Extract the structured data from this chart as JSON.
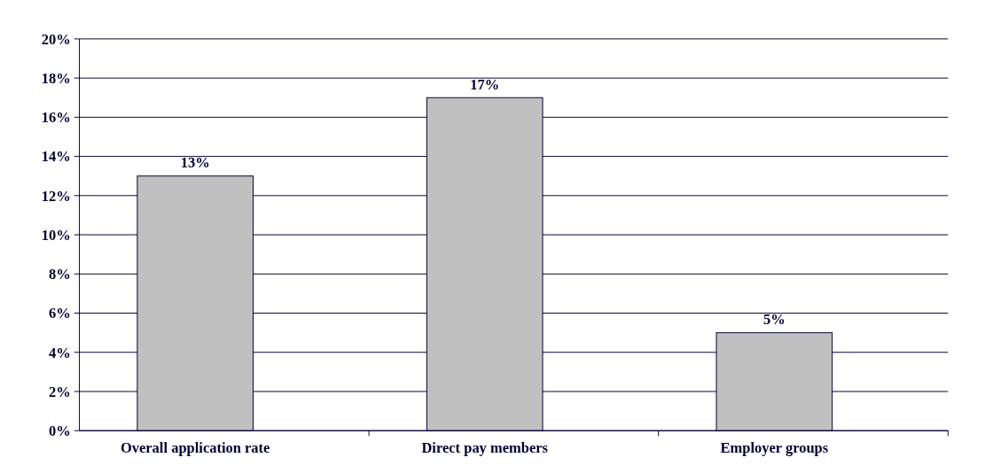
{
  "chart_data": {
    "type": "bar",
    "categories": [
      "Overall application rate",
      "Direct pay members",
      "Employer groups"
    ],
    "values": [
      13,
      17,
      5
    ],
    "color": "#c0c0c0",
    "ylim": [
      0,
      20
    ],
    "yticks": [
      {
        "value": 0,
        "label": "0%"
      },
      {
        "value": 2,
        "label": "2%"
      },
      {
        "value": 4,
        "label": "4%"
      },
      {
        "value": 6,
        "label": "6%"
      },
      {
        "value": 8,
        "label": "8%"
      },
      {
        "value": 10,
        "label": "10%"
      },
      {
        "value": 12,
        "label": "12%"
      },
      {
        "value": 14,
        "label": "14%"
      },
      {
        "value": 16,
        "label": "16%"
      },
      {
        "value": 18,
        "label": "18%"
      },
      {
        "value": 20,
        "label": "20%"
      }
    ],
    "value_labels": [
      "13%",
      "17%",
      "5%"
    ],
    "grid": "y"
  }
}
